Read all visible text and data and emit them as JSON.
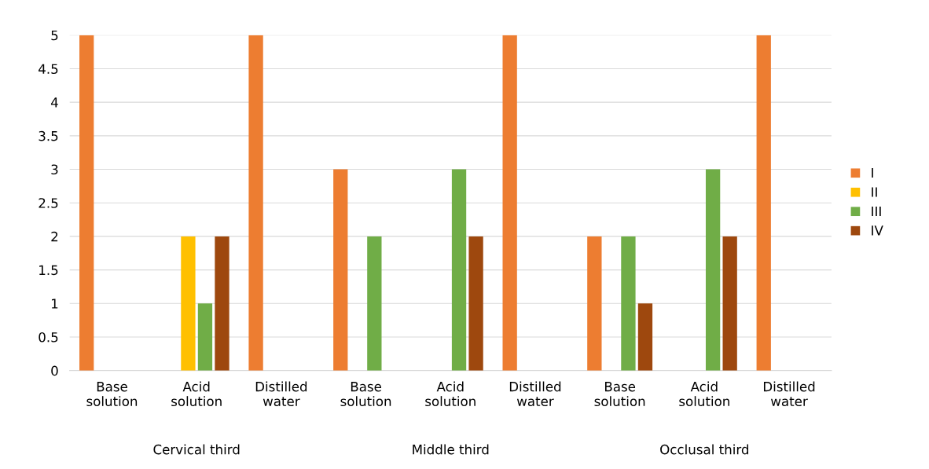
{
  "chart_data": {
    "type": "bar",
    "categories": [
      "Base solution",
      "Acid solution",
      "Distilled water",
      "Base solution",
      "Acid solution",
      "Distilled water",
      "Base solution",
      "Acid solution",
      "Distilled water"
    ],
    "series": [
      {
        "name": "I",
        "color": "#ed7d31",
        "values": [
          5,
          0,
          5,
          3,
          0,
          5,
          2,
          0,
          5
        ]
      },
      {
        "name": "II",
        "color": "#ffc000",
        "values": [
          0,
          2,
          0,
          0,
          0,
          0,
          0,
          0,
          0
        ]
      },
      {
        "name": "III",
        "color": "#70ad47",
        "values": [
          0,
          1,
          0,
          2,
          3,
          0,
          2,
          3,
          0
        ]
      },
      {
        "name": "IV",
        "color": "#9e480e",
        "values": [
          0,
          2,
          0,
          0,
          2,
          0,
          1,
          2,
          0
        ]
      }
    ],
    "annotations": [
      "Cervical third",
      "Middle third",
      "Occlusal third"
    ],
    "ylim": [
      0,
      5
    ],
    "yticks": [
      0,
      0.5,
      1,
      1.5,
      2,
      2.5,
      3,
      3.5,
      4,
      4.5,
      5
    ],
    "grid": "y",
    "legend": "right"
  }
}
